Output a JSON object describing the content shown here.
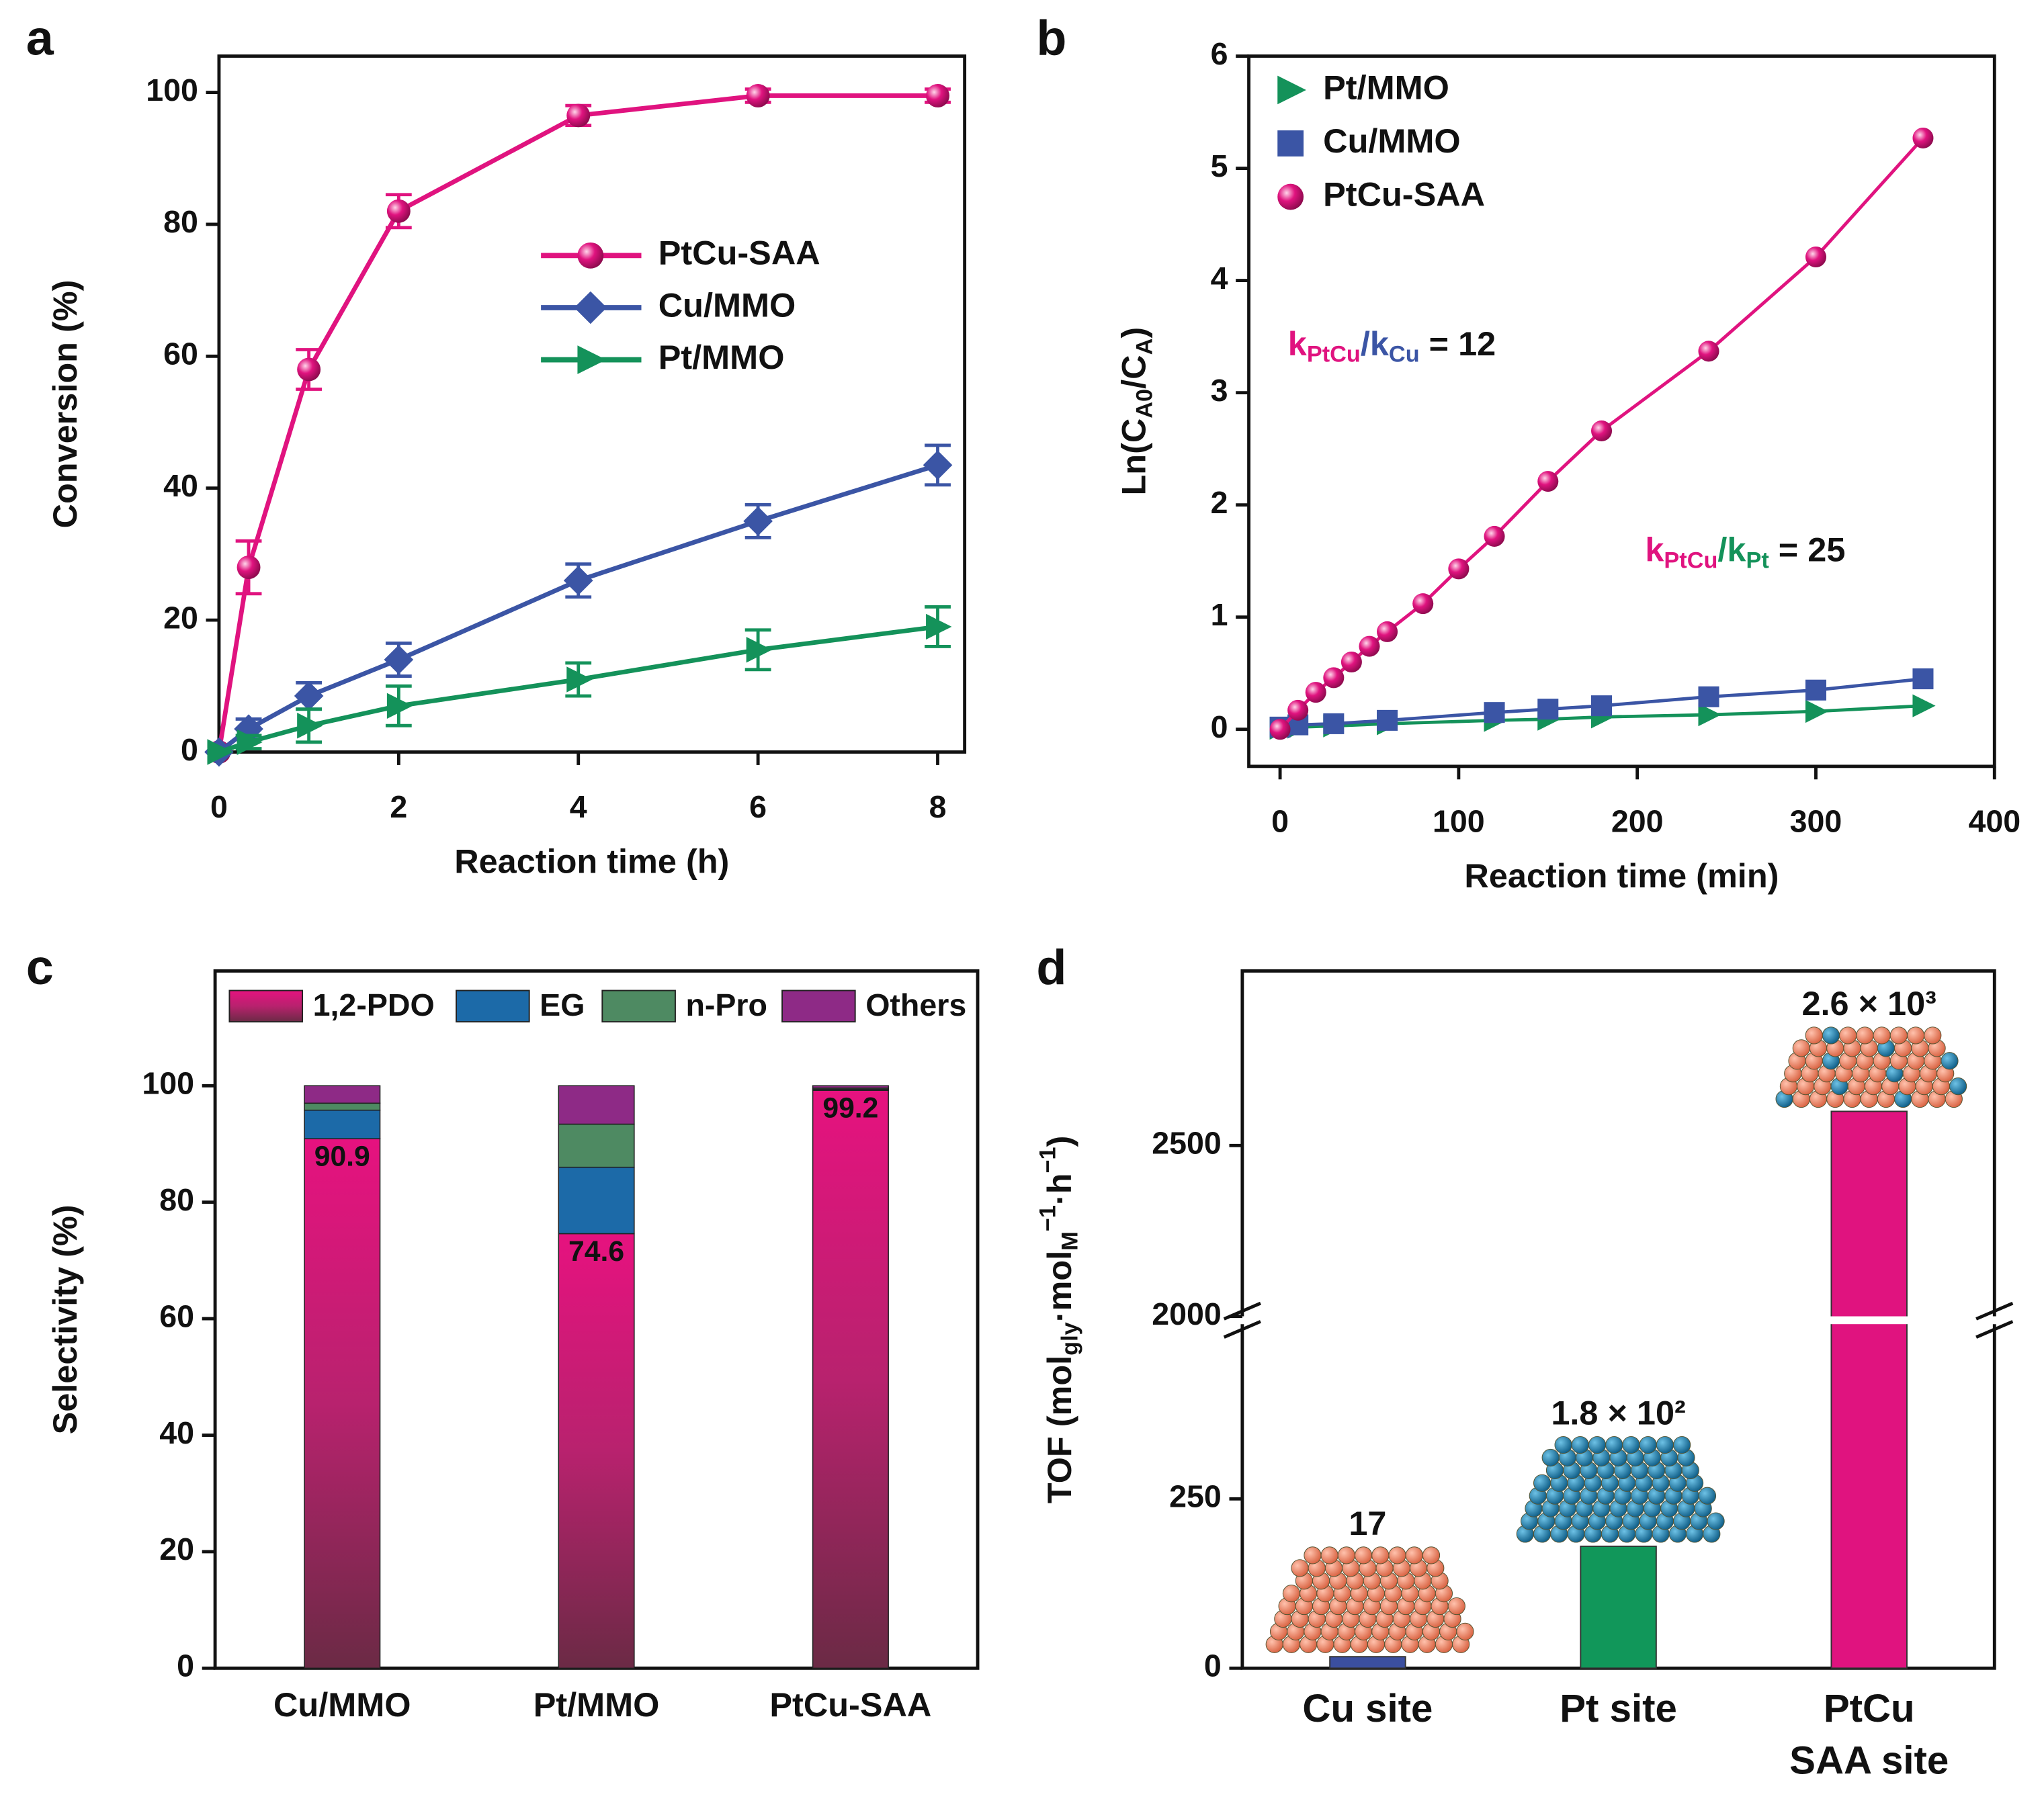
{
  "chart_data": [
    {
      "label": "a",
      "type": "line",
      "xlabel": "Reaction time (h)",
      "ylabel": "Conversion (%)",
      "x": [
        0,
        0.33,
        1,
        2,
        4,
        6,
        8
      ],
      "xlim": [
        0,
        8.3
      ],
      "ylim": [
        0,
        105.5
      ],
      "xticks": [
        0,
        2,
        4,
        6,
        8
      ],
      "yticks": [
        0,
        20,
        40,
        60,
        80,
        100
      ],
      "legend": "center-right",
      "series": [
        {
          "name": "PtCu-SAA",
          "color": "#e0137f",
          "marker": "circle",
          "values": [
            0,
            28,
            58,
            82,
            96.5,
            99.5,
            99.5
          ],
          "errors": [
            0,
            4,
            3,
            2.5,
            1.5,
            1,
            1
          ]
        },
        {
          "name": "Cu/MMO",
          "color": "#3b55a5",
          "marker": "diamond",
          "values": [
            0,
            3.5,
            8.5,
            14,
            26,
            35,
            43.5
          ],
          "errors": [
            0,
            1.5,
            2,
            2.5,
            2.5,
            2.5,
            3
          ]
        },
        {
          "name": "Pt/MMO",
          "color": "#14925a",
          "marker": "triangle",
          "values": [
            0,
            1.5,
            4,
            7,
            11,
            15.5,
            19
          ],
          "errors": [
            0,
            1,
            2.5,
            3,
            2.5,
            3,
            3
          ]
        }
      ]
    },
    {
      "label": "b",
      "type": "scatter",
      "xlabel": "Reaction time (min)",
      "ylabel": [
        {
          "text": "Ln(C"
        },
        {
          "sub": "A0"
        },
        {
          "text": "/C"
        },
        {
          "sub": "A"
        },
        {
          "text": ")"
        }
      ],
      "xlim": [
        -17.5,
        400
      ],
      "ylim": [
        -0.33,
        6
      ],
      "xticks": [
        0,
        100,
        200,
        300,
        400
      ],
      "yticks": [
        0,
        1,
        2,
        3,
        4,
        5,
        6
      ],
      "legend": "upper-left",
      "annotations": [
        [
          {
            "text": "k",
            "color": "#e0137f"
          },
          {
            "sub": "PtCu",
            "color": "#e0137f"
          },
          {
            "text": "/k",
            "color": "#3b55a5"
          },
          {
            "sub": "Cu",
            "color": "#3b55a5"
          },
          {
            "text": " = 12",
            "color": "#111111"
          }
        ],
        [
          {
            "text": "k",
            "color": "#e0137f"
          },
          {
            "sub": "PtCu",
            "color": "#e0137f"
          },
          {
            "text": "/k",
            "color": "#14925a"
          },
          {
            "sub": "Pt",
            "color": "#14925a"
          },
          {
            "text": " = 25",
            "color": "#111111"
          }
        ]
      ],
      "series": [
        {
          "name": "Pt/MMO",
          "color": "#14925a",
          "marker": "triangle",
          "x": [
            0,
            10,
            30,
            60,
            120,
            150,
            180,
            240,
            300,
            360
          ],
          "values": [
            0.01,
            0.02,
            0.03,
            0.05,
            0.08,
            0.09,
            0.11,
            0.13,
            0.16,
            0.21
          ]
        },
        {
          "name": "Cu/MMO",
          "color": "#3b55a5",
          "marker": "square",
          "x": [
            0,
            10,
            30,
            60,
            120,
            150,
            180,
            240,
            300,
            360
          ],
          "values": [
            0.02,
            0.04,
            0.05,
            0.08,
            0.15,
            0.18,
            0.21,
            0.29,
            0.35,
            0.45
          ]
        },
        {
          "name": "PtCu-SAA",
          "color": "#e0137f",
          "marker": "circle",
          "x": [
            0,
            10,
            20,
            30,
            40,
            50,
            60,
            80,
            100,
            120,
            150,
            180,
            240,
            300,
            360
          ],
          "values": [
            0,
            0.17,
            0.33,
            0.46,
            0.6,
            0.74,
            0.87,
            1.12,
            1.43,
            1.72,
            2.21,
            2.66,
            3.37,
            4.21,
            5.27
          ]
        }
      ]
    },
    {
      "label": "c",
      "type": "bar",
      "stacked": true,
      "ylabel": "Selectivity (%)",
      "categories": [
        "Cu/MMO",
        "Pt/MMO",
        "PtCu-SAA"
      ],
      "ylim": [
        0,
        119.7
      ],
      "yticks": [
        0,
        20,
        40,
        60,
        80,
        100
      ],
      "legend": "top",
      "series": [
        {
          "name": "1,2-PDO",
          "color": "#e0137f",
          "values": [
            90.9,
            74.6,
            99.2
          ],
          "data_labels": true
        },
        {
          "name": "EG",
          "color": "#1c6aa8",
          "values": [
            4.9,
            11.4,
            0.2
          ]
        },
        {
          "name": "n-Pro",
          "color": "#4e8a62",
          "values": [
            1.2,
            7.4,
            0.2
          ]
        },
        {
          "name": "Others",
          "color": "#8e2a86",
          "values": [
            3.0,
            6.6,
            0.4
          ]
        }
      ]
    },
    {
      "label": "d",
      "type": "bar",
      "ylabel": [
        {
          "text": "TOF (mol"
        },
        {
          "sub": "gly"
        },
        {
          "text": "·mol"
        },
        {
          "sub": "M"
        },
        {
          "sup": "−1"
        },
        {
          "text": "·h"
        },
        {
          "sup": "−1"
        },
        {
          "text": ")"
        }
      ],
      "categories": [
        [
          "Cu site"
        ],
        [
          "Pt site"
        ],
        [
          "PtCu",
          "SAA site"
        ]
      ],
      "values": [
        17,
        180,
        2600
      ],
      "value_labels": [
        "17",
        "1.8 × 10²",
        "2.6 × 10³"
      ],
      "colors": [
        "#3b4fa0",
        "#11975a",
        "#e0137f"
      ],
      "ylim": [
        0,
        3011
      ],
      "axis_break": [
        508,
        2000
      ],
      "yticks": [
        0,
        250,
        2000,
        2500
      ]
    }
  ]
}
